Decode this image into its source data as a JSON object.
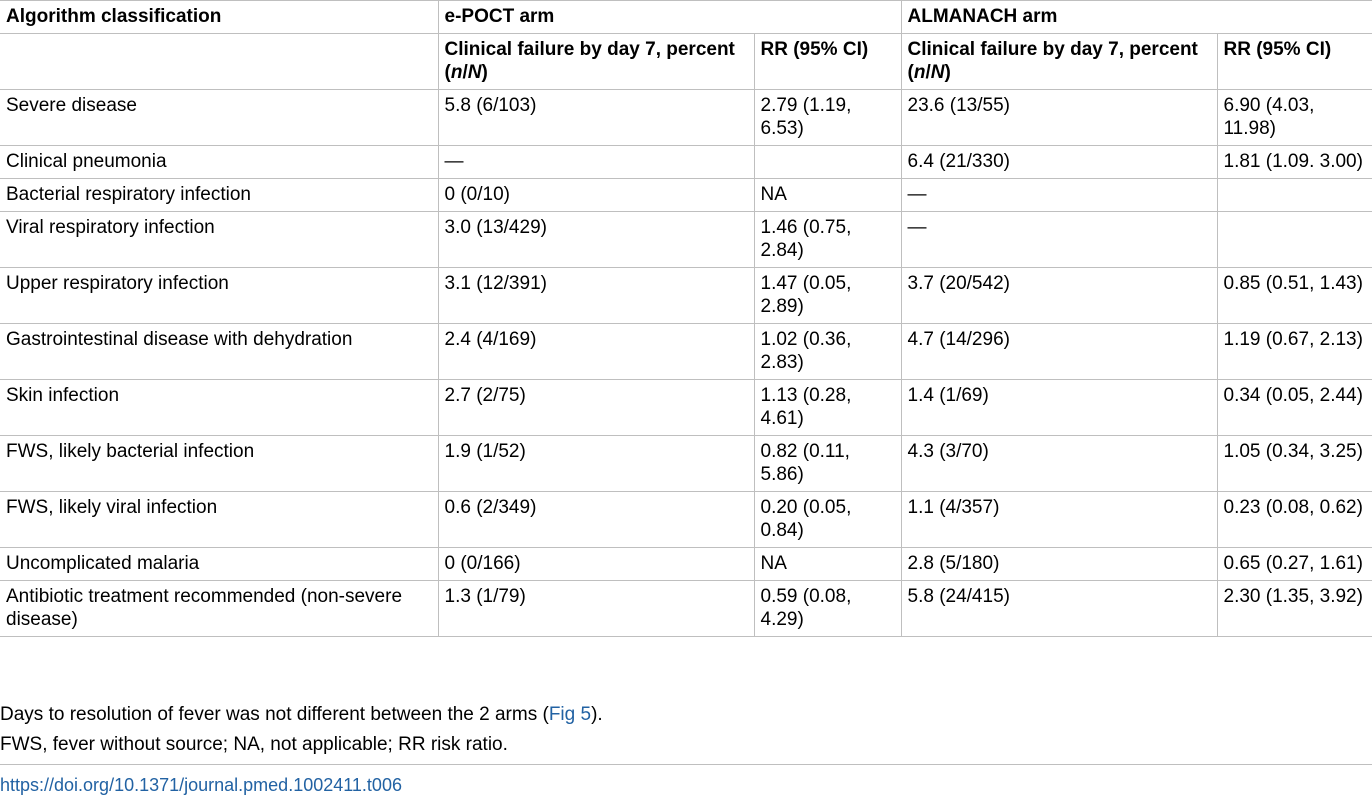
{
  "table": {
    "col_headers": {
      "algorithm": "Algorithm classification",
      "epoct_arm": "e-POCT arm",
      "almanach_arm": "ALMANACH arm",
      "failure_prefix": "Clinical failure by day 7, percent (",
      "failure_n": "n",
      "failure_sep": "/",
      "failure_N": "N",
      "failure_suffix": ")",
      "rr": "RR (95% CI)"
    },
    "rows": [
      {
        "label": "Severe disease",
        "epoct_failure": "5.8 (6/103)",
        "epoct_rr": "2.79 (1.19, 6.53)",
        "alm_failure": "23.6 (13/55)",
        "alm_rr": "6.90 (4.03, 11.98)"
      },
      {
        "label": "Clinical pneumonia",
        "epoct_failure": "—",
        "epoct_rr": "",
        "alm_failure": "6.4 (21/330)",
        "alm_rr": "1.81 (1.09. 3.00)"
      },
      {
        "label": "Bacterial respiratory infection",
        "epoct_failure": "0 (0/10)",
        "epoct_rr": "NA",
        "alm_failure": "—",
        "alm_rr": ""
      },
      {
        "label": "Viral respiratory infection",
        "epoct_failure": "3.0 (13/429)",
        "epoct_rr": "1.46 (0.75, 2.84)",
        "alm_failure": "—",
        "alm_rr": ""
      },
      {
        "label": "Upper respiratory infection",
        "epoct_failure": "3.1 (12/391)",
        "epoct_rr": "1.47 (0.05, 2.89)",
        "alm_failure": "3.7 (20/542)",
        "alm_rr": "0.85 (0.51, 1.43)"
      },
      {
        "label": "Gastrointestinal disease with dehydration",
        "epoct_failure": "2.4 (4/169)",
        "epoct_rr": "1.02 (0.36, 2.83)",
        "alm_failure": "4.7 (14/296)",
        "alm_rr": "1.19 (0.67, 2.13)"
      },
      {
        "label": "Skin infection",
        "epoct_failure": "2.7 (2/75)",
        "epoct_rr": "1.13 (0.28, 4.61)",
        "alm_failure": "1.4 (1/69)",
        "alm_rr": "0.34 (0.05, 2.44)"
      },
      {
        "label": "FWS, likely bacterial infection",
        "epoct_failure": "1.9 (1/52)",
        "epoct_rr": "0.82 (0.11, 5.86)",
        "alm_failure": "4.3 (3/70)",
        "alm_rr": "1.05 (0.34, 3.25)"
      },
      {
        "label": "FWS, likely viral infection",
        "epoct_failure": "0.6 (2/349)",
        "epoct_rr": "0.20 (0.05, 0.84)",
        "alm_failure": "1.1 (4/357)",
        "alm_rr": "0.23 (0.08, 0.62)"
      },
      {
        "label": "Uncomplicated malaria",
        "epoct_failure": "0 (0/166)",
        "epoct_rr": "NA",
        "alm_failure": "2.8 (5/180)",
        "alm_rr": "0.65 (0.27, 1.61)"
      },
      {
        "label": "Antibiotic treatment recommended (non-severe disease)",
        "epoct_failure": "1.3 (1/79)",
        "epoct_rr": "0.59 (0.08, 4.29)",
        "alm_failure": "5.8 (24/415)",
        "alm_rr": "2.30 (1.35, 3.92)"
      }
    ]
  },
  "footnotes": {
    "note1_before": "Days to resolution of fever was not different between the 2 arms (",
    "note1_link": "Fig 5",
    "note1_after": ").",
    "note2": "FWS, fever without source; NA, not applicable; RR risk ratio."
  },
  "doi_link": "https://doi.org/10.1371/journal.pmed.1002411.t006"
}
